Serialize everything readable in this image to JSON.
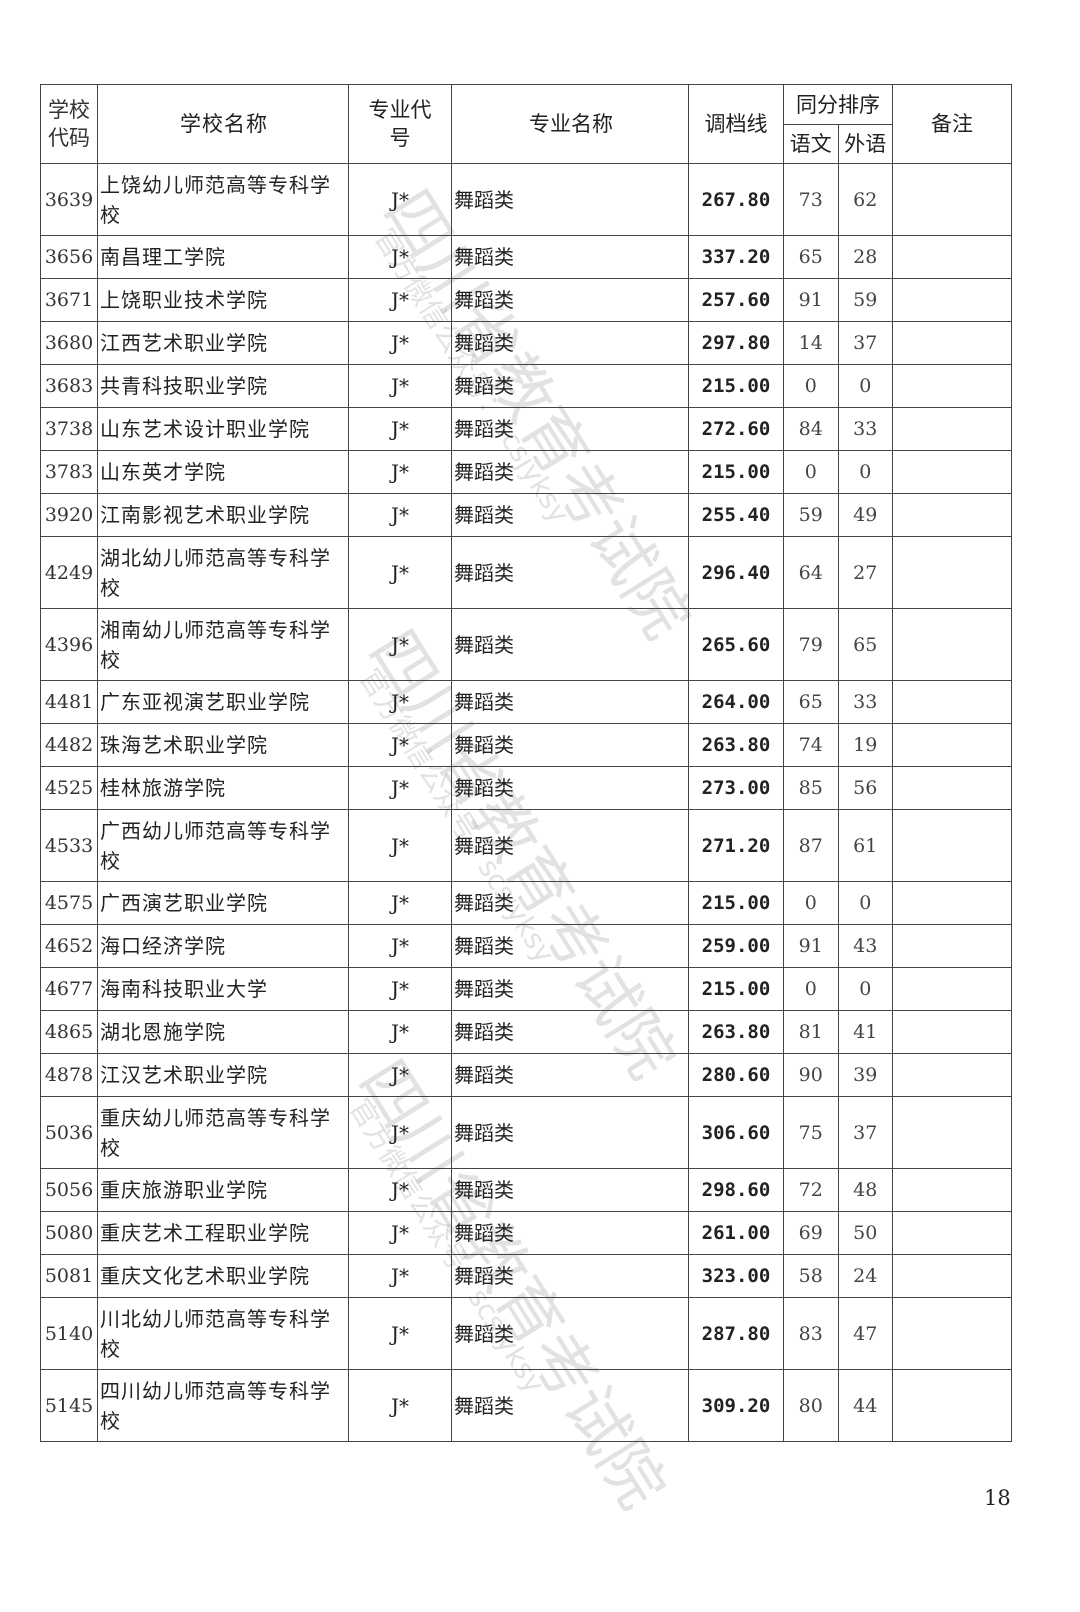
{
  "header": {
    "school_code": "学校代码",
    "school_name": "学校名称",
    "major_code": "专业代号",
    "major_name": "专业名称",
    "cutoff": "调档线",
    "tie_rank": "同分排序",
    "chinese": "语文",
    "foreign": "外语",
    "notes": "备注"
  },
  "rows": [
    {
      "code": "3639",
      "name": "上饶幼儿师范高等专科学校",
      "mcode": "J*",
      "major": "舞蹈类",
      "line": "267.80",
      "cn": "73",
      "fl": "62",
      "note": ""
    },
    {
      "code": "3656",
      "name": "南昌理工学院",
      "mcode": "J*",
      "major": "舞蹈类",
      "line": "337.20",
      "cn": "65",
      "fl": "28",
      "note": ""
    },
    {
      "code": "3671",
      "name": "上饶职业技术学院",
      "mcode": "J*",
      "major": "舞蹈类",
      "line": "257.60",
      "cn": "91",
      "fl": "59",
      "note": ""
    },
    {
      "code": "3680",
      "name": "江西艺术职业学院",
      "mcode": "J*",
      "major": "舞蹈类",
      "line": "297.80",
      "cn": "14",
      "fl": "37",
      "note": ""
    },
    {
      "code": "3683",
      "name": "共青科技职业学院",
      "mcode": "J*",
      "major": "舞蹈类",
      "line": "215.00",
      "cn": "0",
      "fl": "0",
      "note": ""
    },
    {
      "code": "3738",
      "name": "山东艺术设计职业学院",
      "mcode": "J*",
      "major": "舞蹈类",
      "line": "272.60",
      "cn": "84",
      "fl": "33",
      "note": ""
    },
    {
      "code": "3783",
      "name": "山东英才学院",
      "mcode": "J*",
      "major": "舞蹈类",
      "line": "215.00",
      "cn": "0",
      "fl": "0",
      "note": ""
    },
    {
      "code": "3920",
      "name": "江南影视艺术职业学院",
      "mcode": "J*",
      "major": "舞蹈类",
      "line": "255.40",
      "cn": "59",
      "fl": "49",
      "note": ""
    },
    {
      "code": "4249",
      "name": "湖北幼儿师范高等专科学校",
      "mcode": "J*",
      "major": "舞蹈类",
      "line": "296.40",
      "cn": "64",
      "fl": "27",
      "note": ""
    },
    {
      "code": "4396",
      "name": "湘南幼儿师范高等专科学校",
      "mcode": "J*",
      "major": "舞蹈类",
      "line": "265.60",
      "cn": "79",
      "fl": "65",
      "note": ""
    },
    {
      "code": "4481",
      "name": "广东亚视演艺职业学院",
      "mcode": "J*",
      "major": "舞蹈类",
      "line": "264.00",
      "cn": "65",
      "fl": "33",
      "note": ""
    },
    {
      "code": "4482",
      "name": "珠海艺术职业学院",
      "mcode": "J*",
      "major": "舞蹈类",
      "line": "263.80",
      "cn": "74",
      "fl": "19",
      "note": ""
    },
    {
      "code": "4525",
      "name": "桂林旅游学院",
      "mcode": "J*",
      "major": "舞蹈类",
      "line": "273.00",
      "cn": "85",
      "fl": "56",
      "note": ""
    },
    {
      "code": "4533",
      "name": "广西幼儿师范高等专科学校",
      "mcode": "J*",
      "major": "舞蹈类",
      "line": "271.20",
      "cn": "87",
      "fl": "61",
      "note": ""
    },
    {
      "code": "4575",
      "name": "广西演艺职业学院",
      "mcode": "J*",
      "major": "舞蹈类",
      "line": "215.00",
      "cn": "0",
      "fl": "0",
      "note": ""
    },
    {
      "code": "4652",
      "name": "海口经济学院",
      "mcode": "J*",
      "major": "舞蹈类",
      "line": "259.00",
      "cn": "91",
      "fl": "43",
      "note": ""
    },
    {
      "code": "4677",
      "name": "海南科技职业大学",
      "mcode": "J*",
      "major": "舞蹈类",
      "line": "215.00",
      "cn": "0",
      "fl": "0",
      "note": ""
    },
    {
      "code": "4865",
      "name": "湖北恩施学院",
      "mcode": "J*",
      "major": "舞蹈类",
      "line": "263.80",
      "cn": "81",
      "fl": "41",
      "note": ""
    },
    {
      "code": "4878",
      "name": "江汉艺术职业学院",
      "mcode": "J*",
      "major": "舞蹈类",
      "line": "280.60",
      "cn": "90",
      "fl": "39",
      "note": ""
    },
    {
      "code": "5036",
      "name": "重庆幼儿师范高等专科学校",
      "mcode": "J*",
      "major": "舞蹈类",
      "line": "306.60",
      "cn": "75",
      "fl": "37",
      "note": ""
    },
    {
      "code": "5056",
      "name": "重庆旅游职业学院",
      "mcode": "J*",
      "major": "舞蹈类",
      "line": "298.60",
      "cn": "72",
      "fl": "48",
      "note": ""
    },
    {
      "code": "5080",
      "name": "重庆艺术工程职业学院",
      "mcode": "J*",
      "major": "舞蹈类",
      "line": "261.00",
      "cn": "69",
      "fl": "50",
      "note": ""
    },
    {
      "code": "5081",
      "name": "重庆文化艺术职业学院",
      "mcode": "J*",
      "major": "舞蹈类",
      "line": "323.00",
      "cn": "58",
      "fl": "24",
      "note": ""
    },
    {
      "code": "5140",
      "name": "川北幼儿师范高等专科学校",
      "mcode": "J*",
      "major": "舞蹈类",
      "line": "287.80",
      "cn": "83",
      "fl": "47",
      "note": ""
    },
    {
      "code": "5145",
      "name": "四川幼儿师范高等专科学校",
      "mcode": "J*",
      "major": "舞蹈类",
      "line": "309.20",
      "cn": "80",
      "fl": "44",
      "note": ""
    }
  ],
  "page_number": "18",
  "watermark": {
    "main": "四川省教育考试院",
    "sub": "官方微信公众号：scsjyksy"
  }
}
